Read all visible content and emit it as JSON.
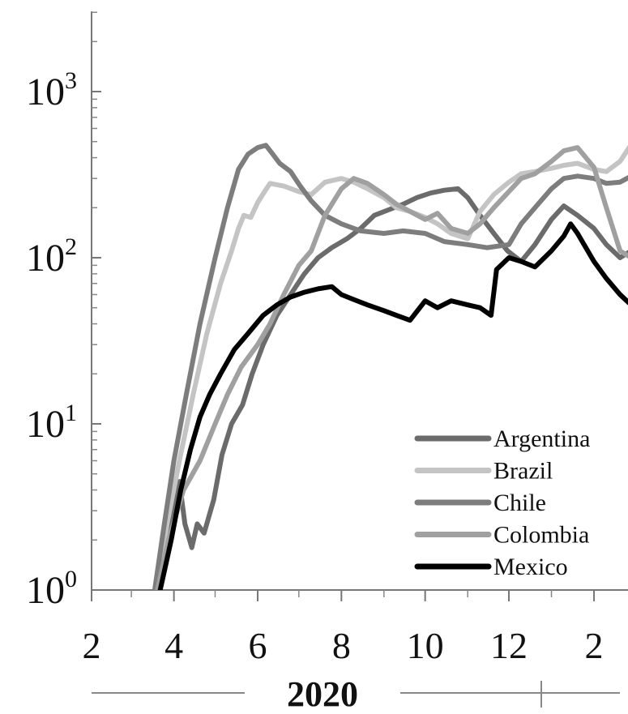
{
  "chart_data": {
    "type": "line",
    "title": "",
    "xlabel": "2020",
    "ylabel": "",
    "y_scale": "log",
    "ylim": [
      1,
      3000
    ],
    "xlim": [
      "2020-01-23",
      "2021-02-28"
    ],
    "grid": false,
    "legend_position": "bottom-right",
    "x_ticks": [
      {
        "date": "2020-02-01",
        "label": "2"
      },
      {
        "date": "2020-04-01",
        "label": "4"
      },
      {
        "date": "2020-06-01",
        "label": "6"
      },
      {
        "date": "2020-08-01",
        "label": "8"
      },
      {
        "date": "2020-10-01",
        "label": "10"
      },
      {
        "date": "2020-12-01",
        "label": "12"
      },
      {
        "date": "2021-02-01",
        "label": "2"
      }
    ],
    "x_minor_ticks": [
      "2020-03-01",
      "2020-05-01",
      "2020-07-01",
      "2020-09-01",
      "2020-11-01",
      "2021-01-01"
    ],
    "y_ticks": [
      {
        "value": 1,
        "base": "10",
        "exp": "0"
      },
      {
        "value": 10,
        "base": "10",
        "exp": "1"
      },
      {
        "value": 100,
        "base": "10",
        "exp": "2"
      },
      {
        "value": 1000,
        "base": "10",
        "exp": "3"
      }
    ],
    "year_label": "2020",
    "series": [
      {
        "name": "Argentina",
        "color": "#6b6b6b",
        "points": [
          [
            "2020-03-20",
            1
          ],
          [
            "2020-03-28",
            2
          ],
          [
            "2020-04-01",
            3
          ],
          [
            "2020-04-05",
            4.5
          ],
          [
            "2020-04-09",
            2.5
          ],
          [
            "2020-04-14",
            1.8
          ],
          [
            "2020-04-18",
            2.5
          ],
          [
            "2020-04-23",
            2.2
          ],
          [
            "2020-04-30",
            3.5
          ],
          [
            "2020-05-06",
            6.5
          ],
          [
            "2020-05-13",
            10
          ],
          [
            "2020-05-21",
            13
          ],
          [
            "2020-05-28",
            20
          ],
          [
            "2020-06-05",
            30
          ],
          [
            "2020-06-15",
            45
          ],
          [
            "2020-06-25",
            60
          ],
          [
            "2020-07-05",
            80
          ],
          [
            "2020-07-15",
            100
          ],
          [
            "2020-07-25",
            115
          ],
          [
            "2020-08-05",
            130
          ],
          [
            "2020-08-15",
            150
          ],
          [
            "2020-08-25",
            180
          ],
          [
            "2020-09-05",
            195
          ],
          [
            "2020-09-15",
            210
          ],
          [
            "2020-09-25",
            230
          ],
          [
            "2020-10-05",
            245
          ],
          [
            "2020-10-15",
            255
          ],
          [
            "2020-10-25",
            260
          ],
          [
            "2020-11-01",
            230
          ],
          [
            "2020-11-10",
            180
          ],
          [
            "2020-11-20",
            140
          ],
          [
            "2020-11-30",
            110
          ],
          [
            "2020-12-10",
            95
          ],
          [
            "2020-12-20",
            120
          ],
          [
            "2021-01-01",
            170
          ],
          [
            "2021-01-10",
            205
          ],
          [
            "2021-01-20",
            180
          ],
          [
            "2021-02-01",
            150
          ],
          [
            "2021-02-10",
            120
          ],
          [
            "2021-02-20",
            100
          ],
          [
            "2021-02-28",
            110
          ]
        ]
      },
      {
        "name": "Brazil",
        "color": "#c4c4c4",
        "points": [
          [
            "2020-03-19",
            1
          ],
          [
            "2020-03-27",
            2.5
          ],
          [
            "2020-04-05",
            6
          ],
          [
            "2020-04-15",
            15
          ],
          [
            "2020-04-25",
            35
          ],
          [
            "2020-05-05",
            70
          ],
          [
            "2020-05-13",
            110
          ],
          [
            "2020-05-18",
            150
          ],
          [
            "2020-05-22",
            180
          ],
          [
            "2020-05-27",
            175
          ],
          [
            "2020-06-01",
            215
          ],
          [
            "2020-06-06",
            250
          ],
          [
            "2020-06-10",
            280
          ],
          [
            "2020-06-20",
            270
          ],
          [
            "2020-07-01",
            250
          ],
          [
            "2020-07-10",
            240
          ],
          [
            "2020-07-20",
            285
          ],
          [
            "2020-08-01",
            300
          ],
          [
            "2020-08-10",
            285
          ],
          [
            "2020-08-20",
            260
          ],
          [
            "2020-09-01",
            230
          ],
          [
            "2020-09-10",
            200
          ],
          [
            "2020-09-20",
            190
          ],
          [
            "2020-10-01",
            175
          ],
          [
            "2020-10-10",
            160
          ],
          [
            "2020-10-20",
            140
          ],
          [
            "2020-11-01",
            130
          ],
          [
            "2020-11-10",
            190
          ],
          [
            "2020-11-20",
            240
          ],
          [
            "2020-12-01",
            285
          ],
          [
            "2020-12-10",
            320
          ],
          [
            "2020-12-20",
            330
          ],
          [
            "2021-01-01",
            345
          ],
          [
            "2021-01-10",
            360
          ],
          [
            "2021-01-20",
            370
          ],
          [
            "2021-02-01",
            340
          ],
          [
            "2021-02-10",
            330
          ],
          [
            "2021-02-20",
            380
          ],
          [
            "2021-02-28",
            480
          ]
        ]
      },
      {
        "name": "Chile",
        "color": "#7d7d7d",
        "points": [
          [
            "2020-03-18",
            1
          ],
          [
            "2020-03-25",
            2.5
          ],
          [
            "2020-04-01",
            6
          ],
          [
            "2020-04-10",
            15
          ],
          [
            "2020-04-20",
            40
          ],
          [
            "2020-05-01",
            100
          ],
          [
            "2020-05-10",
            200
          ],
          [
            "2020-05-18",
            340
          ],
          [
            "2020-05-25",
            420
          ],
          [
            "2020-06-01",
            460
          ],
          [
            "2020-06-07",
            475
          ],
          [
            "2020-06-12",
            420
          ],
          [
            "2020-06-17",
            370
          ],
          [
            "2020-06-25",
            330
          ],
          [
            "2020-07-02",
            270
          ],
          [
            "2020-07-10",
            220
          ],
          [
            "2020-07-20",
            180
          ],
          [
            "2020-08-01",
            160
          ],
          [
            "2020-08-15",
            145
          ],
          [
            "2020-09-01",
            140
          ],
          [
            "2020-09-15",
            145
          ],
          [
            "2020-10-01",
            140
          ],
          [
            "2020-10-15",
            125
          ],
          [
            "2020-11-01",
            120
          ],
          [
            "2020-11-15",
            115
          ],
          [
            "2020-12-01",
            120
          ],
          [
            "2020-12-10",
            160
          ],
          [
            "2020-12-20",
            200
          ],
          [
            "2021-01-01",
            260
          ],
          [
            "2021-01-10",
            300
          ],
          [
            "2021-01-20",
            310
          ],
          [
            "2021-02-01",
            300
          ],
          [
            "2021-02-10",
            280
          ],
          [
            "2021-02-20",
            285
          ],
          [
            "2021-02-28",
            310
          ]
        ]
      },
      {
        "name": "Colombia",
        "color": "#a0a0a0",
        "points": [
          [
            "2020-03-20",
            1
          ],
          [
            "2020-03-28",
            2
          ],
          [
            "2020-04-08",
            4
          ],
          [
            "2020-04-20",
            6
          ],
          [
            "2020-05-01",
            10
          ],
          [
            "2020-05-10",
            15
          ],
          [
            "2020-05-20",
            22
          ],
          [
            "2020-06-01",
            30
          ],
          [
            "2020-06-10",
            40
          ],
          [
            "2020-06-20",
            60
          ],
          [
            "2020-07-01",
            90
          ],
          [
            "2020-07-10",
            110
          ],
          [
            "2020-07-20",
            180
          ],
          [
            "2020-08-01",
            260
          ],
          [
            "2020-08-10",
            300
          ],
          [
            "2020-08-20",
            280
          ],
          [
            "2020-09-01",
            240
          ],
          [
            "2020-09-10",
            210
          ],
          [
            "2020-09-20",
            190
          ],
          [
            "2020-10-01",
            170
          ],
          [
            "2020-10-10",
            185
          ],
          [
            "2020-10-20",
            150
          ],
          [
            "2020-11-01",
            140
          ],
          [
            "2020-11-10",
            160
          ],
          [
            "2020-11-20",
            200
          ],
          [
            "2020-12-01",
            250
          ],
          [
            "2020-12-10",
            300
          ],
          [
            "2020-12-20",
            320
          ],
          [
            "2021-01-01",
            380
          ],
          [
            "2021-01-10",
            440
          ],
          [
            "2021-01-20",
            460
          ],
          [
            "2021-02-01",
            350
          ],
          [
            "2021-02-10",
            200
          ],
          [
            "2021-02-20",
            110
          ],
          [
            "2021-02-28",
            100
          ]
        ]
      },
      {
        "name": "Mexico",
        "color": "#000000",
        "points": [
          [
            "2020-03-22",
            1
          ],
          [
            "2020-03-30",
            2
          ],
          [
            "2020-04-06",
            4
          ],
          [
            "2020-04-13",
            7
          ],
          [
            "2020-04-20",
            11
          ],
          [
            "2020-04-27",
            15
          ],
          [
            "2020-05-05",
            20
          ],
          [
            "2020-05-15",
            28
          ],
          [
            "2020-05-25",
            35
          ],
          [
            "2020-06-05",
            45
          ],
          [
            "2020-06-15",
            52
          ],
          [
            "2020-06-25",
            58
          ],
          [
            "2020-07-05",
            62
          ],
          [
            "2020-07-15",
            65
          ],
          [
            "2020-07-25",
            67
          ],
          [
            "2020-08-01",
            60
          ],
          [
            "2020-08-10",
            56
          ],
          [
            "2020-08-20",
            52
          ],
          [
            "2020-09-01",
            48
          ],
          [
            "2020-09-10",
            45
          ],
          [
            "2020-09-20",
            42
          ],
          [
            "2020-10-01",
            55
          ],
          [
            "2020-10-10",
            50
          ],
          [
            "2020-10-20",
            55
          ],
          [
            "2020-11-01",
            52
          ],
          [
            "2020-11-10",
            50
          ],
          [
            "2020-11-18",
            45
          ],
          [
            "2020-11-22",
            85
          ],
          [
            "2020-12-01",
            100
          ],
          [
            "2020-12-10",
            95
          ],
          [
            "2020-12-20",
            88
          ],
          [
            "2021-01-01",
            110
          ],
          [
            "2021-01-10",
            135
          ],
          [
            "2021-01-15",
            160
          ],
          [
            "2021-01-20",
            140
          ],
          [
            "2021-02-01",
            95
          ],
          [
            "2021-02-10",
            75
          ],
          [
            "2021-02-20",
            60
          ],
          [
            "2021-02-28",
            52
          ]
        ]
      }
    ]
  }
}
